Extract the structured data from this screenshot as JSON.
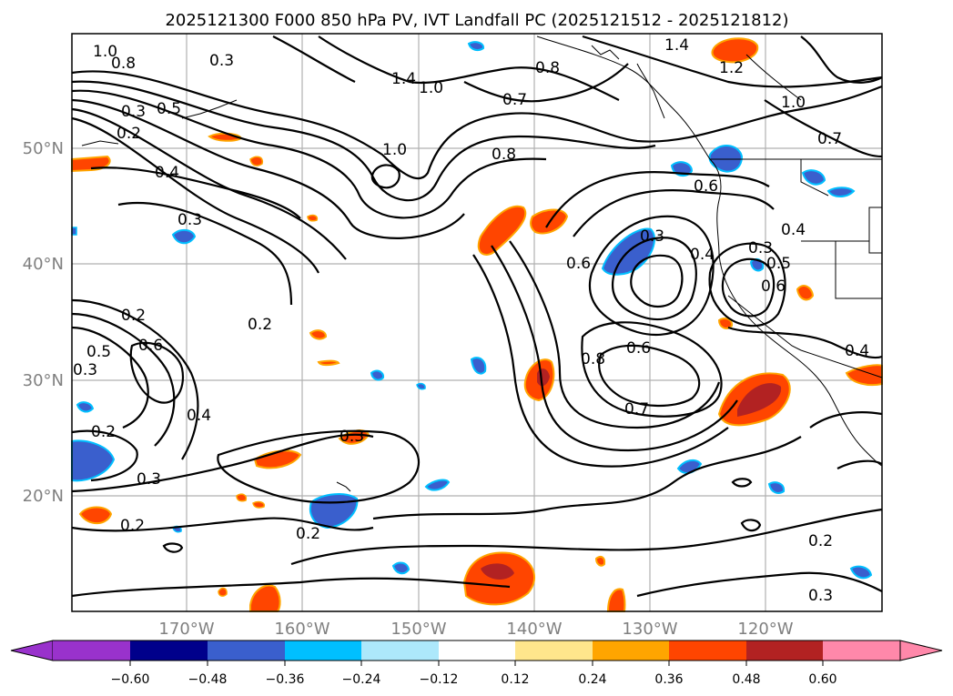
{
  "title": "2025121300 F000 850 hPa PV, IVT Landfall PC (2025121512 - 2025121812)",
  "lat_labels": [
    "50°N",
    "40°N",
    "30°N",
    "20°N"
  ],
  "lon_labels": [
    "170°W",
    "160°W",
    "150°W",
    "140°W",
    "130°W",
    "120°W"
  ],
  "colorbar": {
    "ticks": [
      "−0.60",
      "−0.48",
      "−0.36",
      "−0.24",
      "−0.12",
      "0.12",
      "0.24",
      "0.36",
      "0.48",
      "0.60"
    ],
    "colors": [
      "#9932cc",
      "#00008b",
      "#3a5fcd",
      "#00bfff",
      "#ade8fb",
      "#ffffff",
      "#ffe68c",
      "#ffa500",
      "#ff4500",
      "#b22222",
      "#ff88aa"
    ]
  },
  "contour_labels": [
    "1.0",
    "0.8",
    "0.3",
    "0.5",
    "0.3",
    "0.2",
    "0.4",
    "0.3",
    "1.0",
    "0.8",
    "1.4",
    "1.0",
    "0.7",
    "0.8",
    "1.4",
    "1.2",
    "1.0",
    "0.7",
    "0.6",
    "0.4",
    "0.6",
    "0.3",
    "0.4",
    "0.3",
    "0.5",
    "0.6",
    "0.2",
    "0.2",
    "0.5",
    "0.6",
    "0.3",
    "0.4",
    "0.2",
    "0.3",
    "0.3",
    "0.2",
    "0.2",
    "0.8",
    "0.6",
    "0.7",
    "0.4",
    "0.2",
    "0.3"
  ],
  "map_panel_label": "PV / IVT map"
}
